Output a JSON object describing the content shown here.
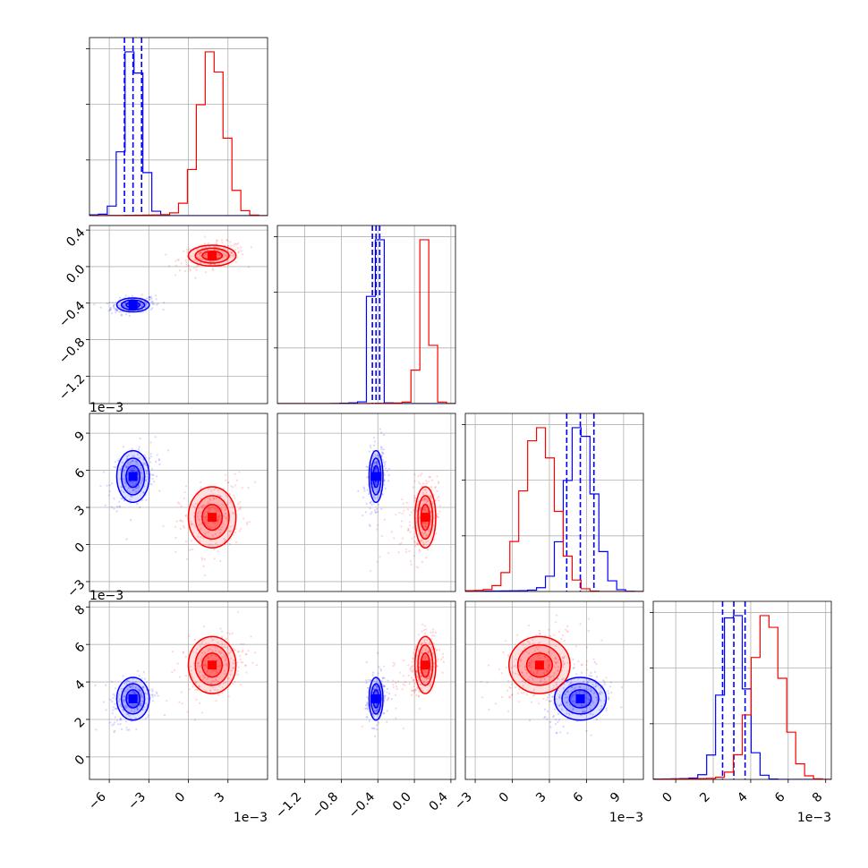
{
  "chart_data": {
    "type": "corner",
    "title": "",
    "colors": {
      "series_a": "#0000ff",
      "series_b": "#ff0000"
    },
    "parameters": [
      {
        "range": [
          -7.5,
          6.0
        ],
        "ticks": [
          -6,
          -3,
          0,
          3
        ],
        "tick_labels": [
          "−6",
          "−3",
          "0",
          "3"
        ],
        "scale_label": "1e−3"
      },
      {
        "range": [
          -1.5,
          0.45
        ],
        "ticks": [
          -1.2,
          -0.8,
          -0.4,
          0.0,
          0.4
        ],
        "tick_labels": [
          "−1.2",
          "−0.8",
          "−0.4",
          "0.0",
          "0.4"
        ],
        "scale_label": ""
      },
      {
        "range": [
          -3.8,
          10.6
        ],
        "ticks": [
          -3,
          0,
          3,
          6,
          9
        ],
        "tick_labels": [
          "−3",
          "0",
          "3",
          "6",
          "9"
        ],
        "scale_label": "1e−3"
      },
      {
        "range": [
          -1.2,
          8.3
        ],
        "ticks": [
          0,
          2,
          4,
          6,
          8
        ],
        "tick_labels": [
          "0",
          "2",
          "4",
          "6",
          "8"
        ],
        "scale_label": "1e−3"
      }
    ],
    "series": [
      {
        "name": "",
        "color": "#0000ff",
        "mean": [
          -4.2,
          -0.42,
          5.5,
          3.1
        ],
        "std": [
          0.65,
          0.04,
          1.1,
          0.6
        ],
        "quantiles": [
          [
            -4.85,
            -4.2,
            -3.55
          ],
          [
            -0.46,
            -0.42,
            -0.38
          ],
          [
            4.4,
            5.5,
            6.6
          ],
          [
            2.5,
            3.1,
            3.7
          ]
        ]
      },
      {
        "name": "",
        "color": "#ff0000",
        "mean": [
          1.8,
          0.12,
          2.2,
          4.9
        ],
        "std": [
          0.95,
          0.06,
          1.3,
          0.8
        ]
      }
    ],
    "histogram_y_ticks": 3,
    "grid": true
  }
}
